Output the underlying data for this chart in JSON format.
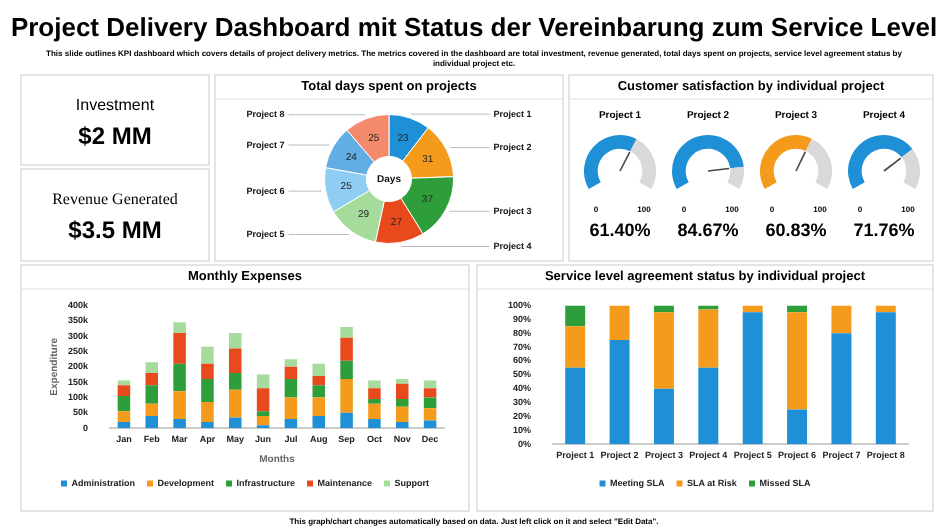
{
  "chart_data": [
    {
      "type": "other",
      "title": "Project Delivery Dashboard mit Status der Vereinbarung zum Service Level",
      "subtitle": "This slide outlines KPI dashboard which covers details of project delivery metrics. The metrics covered in the dashboard are total investment, revenue generated, total days spent on projects, service level agreement status by individual project etc.",
      "annotations": [
        "Investment",
        "$2 MM",
        "Revenue Generated",
        "$3.5 MM",
        "This graph/chart changes automatically based on data. Just left click on it and select \"Edit Data\"."
      ]
    },
    {
      "type": "donut",
      "title": "Total days spent on projects",
      "categories": [
        "Project 1",
        "Project 2",
        "Project 3",
        "Project 4",
        "Project 5",
        "Project 6",
        "Project 7",
        "Project 8"
      ],
      "values": [
        23,
        31,
        37,
        27,
        29,
        25,
        24,
        25
      ],
      "colors": [
        "#1f8fd6",
        "#f59b1b",
        "#2e9e3a",
        "#e84a1e",
        "#a5dc9c",
        "#8fcdf2",
        "#62ade3",
        "#f28a6b"
      ],
      "data_labels": true,
      "annotations": [
        "Days"
      ]
    },
    {
      "type": "other",
      "title": "Customer satisfaction by individual project"
    },
    {
      "type": "donut",
      "title": "Project 1",
      "categories": [
        null,
        null
      ],
      "values": [
        61.4,
        38.6
      ],
      "colors": [
        "#1f8fd6",
        "#d9d9d9"
      ],
      "annotations": [
        "0",
        "100",
        "61.40%"
      ]
    },
    {
      "type": "donut",
      "title": "Project 2",
      "categories": [
        null,
        null
      ],
      "values": [
        84.67,
        15.33
      ],
      "colors": [
        "#1f8fd6",
        "#d9d9d9"
      ],
      "annotations": [
        "0",
        "100",
        "84.67%"
      ]
    },
    {
      "type": "donut",
      "title": "Project 3",
      "categories": [
        null,
        null
      ],
      "values": [
        60.83,
        39.17
      ],
      "colors": [
        "#f59b1b",
        "#d9d9d9"
      ],
      "annotations": [
        "0",
        "100",
        "60.83%"
      ]
    },
    {
      "type": "donut",
      "title": "Project 4",
      "categories": [
        null,
        null
      ],
      "values": [
        71.76,
        28.24
      ],
      "colors": [
        "#1f8fd6",
        "#d9d9d9"
      ],
      "annotations": [
        "0",
        "100",
        "71.76%"
      ]
    },
    {
      "type": "bar",
      "stacked": true,
      "title": "Monthly Expenses",
      "xlabel": "Months",
      "ylabel": "Expenditure",
      "categories": [
        "Jan",
        "Feb",
        "Mar",
        "Apr",
        "May",
        "Jun",
        "Jul",
        "Aug",
        "Sep",
        "Oct",
        "Nov",
        "Dec"
      ],
      "ylim": [
        0,
        400
      ],
      "yticks": [
        0,
        {
          "value": 50,
          "label": "50k"
        },
        {
          "value": 100,
          "label": "100k"
        },
        {
          "value": 150,
          "label": "150k"
        },
        {
          "value": 200,
          "label": "200k"
        },
        {
          "value": 250,
          "label": "250k"
        },
        {
          "value": 300,
          "label": "300k"
        },
        {
          "value": 350,
          "label": "350k"
        },
        {
          "value": 400,
          "label": "400k"
        }
      ],
      "legend": "bottom",
      "series": [
        {
          "name": "Administration",
          "color": "#1f8fd6",
          "values": [
            20,
            40,
            30,
            20,
            35,
            10,
            30,
            40,
            50,
            30,
            20,
            25
          ]
        },
        {
          "name": "Development",
          "color": "#f59b1b",
          "values": [
            35,
            40,
            90,
            65,
            90,
            30,
            70,
            60,
            110,
            50,
            50,
            40
          ]
        },
        {
          "name": "Infrastructure",
          "color": "#2e9e3a",
          "values": [
            50,
            60,
            90,
            75,
            55,
            15,
            60,
            40,
            60,
            15,
            25,
            35
          ]
        },
        {
          "name": "Maintenance",
          "color": "#e84a1e",
          "values": [
            35,
            40,
            100,
            50,
            80,
            75,
            40,
            30,
            75,
            35,
            50,
            30
          ]
        },
        {
          "name": "Support",
          "color": "#a5dc9c",
          "values": [
            15,
            35,
            35,
            55,
            50,
            45,
            25,
            40,
            35,
            25,
            15,
            25
          ]
        }
      ]
    },
    {
      "type": "bar",
      "stacked": true,
      "title": "Service level agreement status by individual project",
      "categories": [
        "Project 1",
        "Project 2",
        "Project 3",
        "Project 4",
        "Project 5",
        "Project 6",
        "Project 7",
        "Project 8"
      ],
      "ylim": [
        0,
        100
      ],
      "yticks": [
        {
          "value": 0,
          "label": "0%"
        },
        {
          "value": 10,
          "label": "10%"
        },
        {
          "value": 20,
          "label": "20%"
        },
        {
          "value": 30,
          "label": "30%"
        },
        {
          "value": 40,
          "label": "40%"
        },
        {
          "value": 50,
          "label": "50%"
        },
        {
          "value": 60,
          "label": "60%"
        },
        {
          "value": 70,
          "label": "70%"
        },
        {
          "value": 80,
          "label": "80%"
        },
        {
          "value": 90,
          "label": "90%"
        },
        {
          "value": 100,
          "label": "100%"
        }
      ],
      "legend": "bottom",
      "series": [
        {
          "name": "Meeting SLA",
          "color": "#1f8fd6",
          "values": [
            55,
            75,
            40,
            55,
            95,
            25,
            80,
            95
          ]
        },
        {
          "name": "SLA at Risk",
          "color": "#f59b1b",
          "values": [
            30,
            25,
            55,
            42,
            5,
            70,
            20,
            5
          ]
        },
        {
          "name": "Missed SLA",
          "color": "#2e9e3a",
          "values": [
            15,
            0,
            5,
            3,
            0,
            5,
            0,
            0
          ]
        }
      ]
    }
  ]
}
